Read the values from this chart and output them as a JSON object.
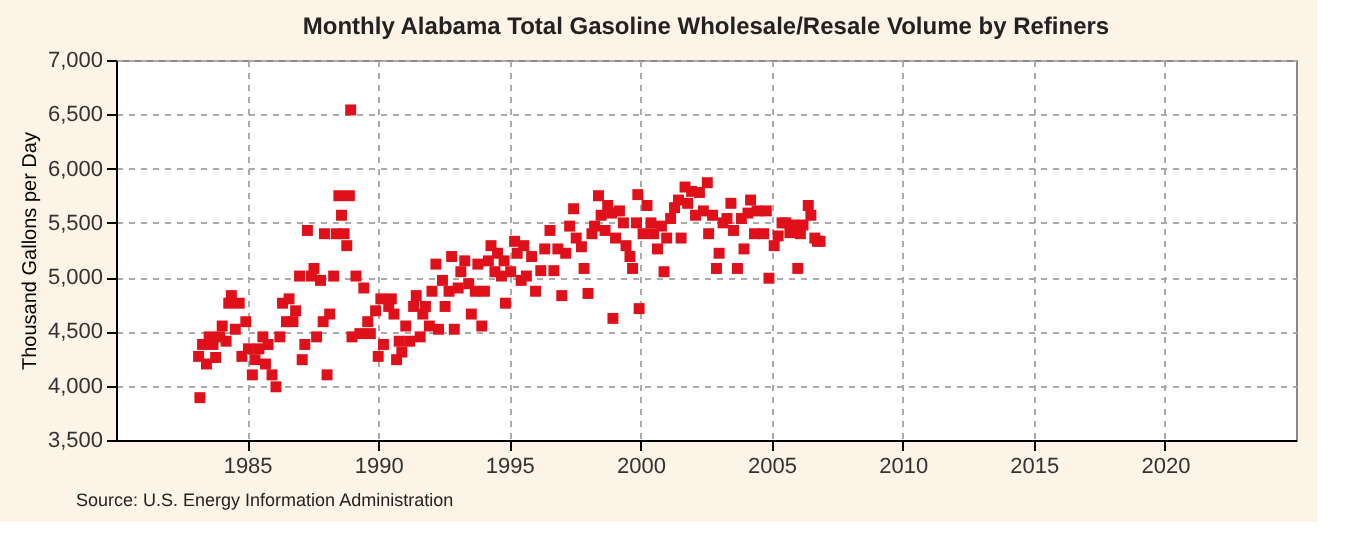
{
  "chart_data": {
    "type": "scatter",
    "title": "Monthly Alabama Total Gasoline Wholesale/Resale Volume by Refiners",
    "ylabel": "Thousand Gallons per Day",
    "x": [
      1983.15,
      1983.2,
      1983.3,
      1983.45,
      1983.55,
      1983.7,
      1983.8,
      1983.95,
      1984.05,
      1984.2,
      1984.3,
      1984.4,
      1984.55,
      1984.7,
      1984.8,
      1984.95,
      1985.05,
      1985.2,
      1985.3,
      1985.45,
      1985.6,
      1985.7,
      1985.8,
      1985.95,
      1986.1,
      1986.25,
      1986.35,
      1986.5,
      1986.6,
      1986.75,
      1986.85,
      1987.0,
      1987.1,
      1987.2,
      1987.3,
      1987.45,
      1987.55,
      1987.65,
      1987.8,
      1987.9,
      1987.95,
      1988.05,
      1988.15,
      1988.3,
      1988.4,
      1988.5,
      1988.6,
      1988.7,
      1988.8,
      1988.9,
      1988.95,
      1989.0,
      1989.15,
      1989.3,
      1989.45,
      1989.6,
      1989.7,
      1989.9,
      1990.0,
      1990.1,
      1990.2,
      1990.4,
      1990.5,
      1990.6,
      1990.7,
      1990.8,
      1990.9,
      1991.05,
      1991.2,
      1991.35,
      1991.45,
      1991.6,
      1991.7,
      1991.8,
      1991.95,
      1992.05,
      1992.2,
      1992.3,
      1992.45,
      1992.55,
      1992.7,
      1992.8,
      1992.9,
      1993.05,
      1993.15,
      1993.3,
      1993.45,
      1993.55,
      1993.7,
      1993.8,
      1993.95,
      1994.05,
      1994.2,
      1994.3,
      1994.45,
      1994.55,
      1994.7,
      1994.8,
      1994.85,
      1995.05,
      1995.2,
      1995.3,
      1995.45,
      1995.55,
      1995.65,
      1995.85,
      1996.0,
      1996.2,
      1996.35,
      1996.55,
      1996.7,
      1996.85,
      1997.0,
      1997.15,
      1997.3,
      1997.45,
      1997.55,
      1997.75,
      1997.85,
      1998.0,
      1998.15,
      1998.25,
      1998.4,
      1998.5,
      1998.65,
      1998.75,
      1998.9,
      1998.95,
      1999.05,
      1999.2,
      1999.35,
      1999.45,
      1999.6,
      1999.7,
      1999.85,
      1999.9,
      1999.95,
      2000.1,
      2000.25,
      2000.4,
      2000.5,
      2000.65,
      2000.8,
      2000.9,
      2001.0,
      2001.15,
      2001.3,
      2001.45,
      2001.55,
      2001.7,
      2001.8,
      2001.95,
      2002.1,
      2002.25,
      2002.4,
      2002.55,
      2002.6,
      2002.75,
      2002.9,
      2003.0,
      2003.15,
      2003.3,
      2003.45,
      2003.55,
      2003.7,
      2003.85,
      2003.95,
      2004.1,
      2004.2,
      2004.35,
      2004.45,
      2004.7,
      2004.8,
      2004.9,
      2005.1,
      2005.25,
      2005.4,
      2005.55,
      2005.7,
      2005.85,
      2006.0,
      2006.1,
      2006.2,
      2006.4,
      2006.5,
      2006.65,
      2006.75,
      2006.85
    ],
    "series": [
      {
        "color": "#e0101a",
        "values": [
          4270,
          3890,
          4380,
          4200,
          4450,
          4380,
          4260,
          4450,
          4550,
          4410,
          4760,
          4830,
          4520,
          4760,
          4270,
          4590,
          4340,
          4100,
          4240,
          4340,
          4450,
          4200,
          4380,
          4100,
          3990,
          4450,
          4760,
          4590,
          4800,
          4590,
          4690,
          5010,
          4240,
          4380,
          5430,
          5010,
          5080,
          4450,
          4970,
          4590,
          5400,
          4100,
          4660,
          5010,
          5400,
          5750,
          5570,
          5400,
          5290,
          5750,
          6540,
          4450,
          5010,
          4480,
          4900,
          4590,
          4480,
          4690,
          4270,
          4800,
          4380,
          4730,
          4800,
          4660,
          4240,
          4410,
          4310,
          4550,
          4410,
          4730,
          4830,
          4450,
          4660,
          4730,
          4550,
          4870,
          5120,
          4520,
          4970,
          4730,
          4870,
          5190,
          4520,
          4900,
          5050,
          5150,
          4940,
          4660,
          4870,
          5120,
          4550,
          4870,
          5150,
          5290,
          5050,
          5220,
          5010,
          5150,
          4760,
          5050,
          5330,
          5220,
          4970,
          5290,
          5010,
          5190,
          4870,
          5060,
          5260,
          5430,
          5060,
          5260,
          4830,
          5220,
          5470,
          5630,
          5360,
          5280,
          5080,
          4850,
          5400,
          5470,
          5750,
          5570,
          5430,
          5660,
          5590,
          4620,
          5360,
          5610,
          5500,
          5290,
          5190,
          5080,
          5500,
          5760,
          4710,
          5400,
          5660,
          5500,
          5400,
          5260,
          5470,
          5050,
          5360,
          5540,
          5640,
          5710,
          5360,
          5830,
          5680,
          5790,
          5570,
          5780,
          5610,
          5870,
          5400,
          5570,
          5080,
          5220,
          5500,
          5540,
          5680,
          5430,
          5080,
          5540,
          5260,
          5590,
          5710,
          5400,
          5610,
          5400,
          5610,
          4990,
          5290,
          5380,
          5500,
          5500,
          5410,
          5480,
          5080,
          5400,
          5480,
          5660,
          5570,
          5360,
          5330,
          5330
        ]
      }
    ],
    "xlim": [
      1980,
      2025
    ],
    "xticks": [
      1985,
      1990,
      1995,
      2000,
      2005,
      2010,
      2015,
      2020
    ],
    "ylim": [
      3500,
      7000
    ],
    "yticks": [
      {
        "value": 3500,
        "label": "3,500"
      },
      {
        "value": 4000,
        "label": "4,000"
      },
      {
        "value": 4500,
        "label": "4,500"
      },
      {
        "value": 5000,
        "label": "5,000"
      },
      {
        "value": 5500,
        "label": "5,500"
      },
      {
        "value": 6000,
        "label": "6,000"
      },
      {
        "value": 6500,
        "label": "6,500"
      },
      {
        "value": 7000,
        "label": "7,000"
      }
    ],
    "grid": true,
    "marker": "square",
    "legend": false,
    "annotations": [
      "Source: U.S. Energy Information Administration"
    ]
  }
}
